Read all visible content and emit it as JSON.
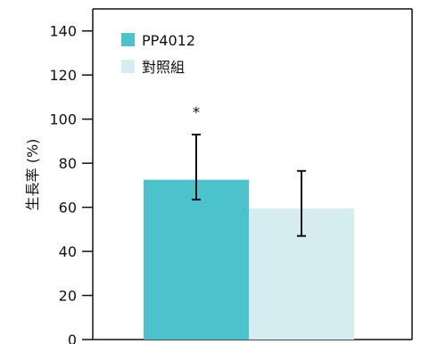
{
  "chart_data": {
    "type": "bar",
    "ylabel": "生長率 (%)",
    "ylim": [
      0,
      150
    ],
    "yticks": [
      0,
      20,
      40,
      60,
      80,
      100,
      120,
      140
    ],
    "grid": false,
    "legend_position": "top-left",
    "series": [
      {
        "name": "PP4012",
        "value": 72.5,
        "error_low": 63.5,
        "error_high": 93,
        "annotation": "*",
        "color": "#4cc3cc"
      },
      {
        "name": "對照組",
        "value": 59.5,
        "error_low": 47,
        "error_high": 76.5,
        "color": "#d5edf0"
      }
    ]
  }
}
